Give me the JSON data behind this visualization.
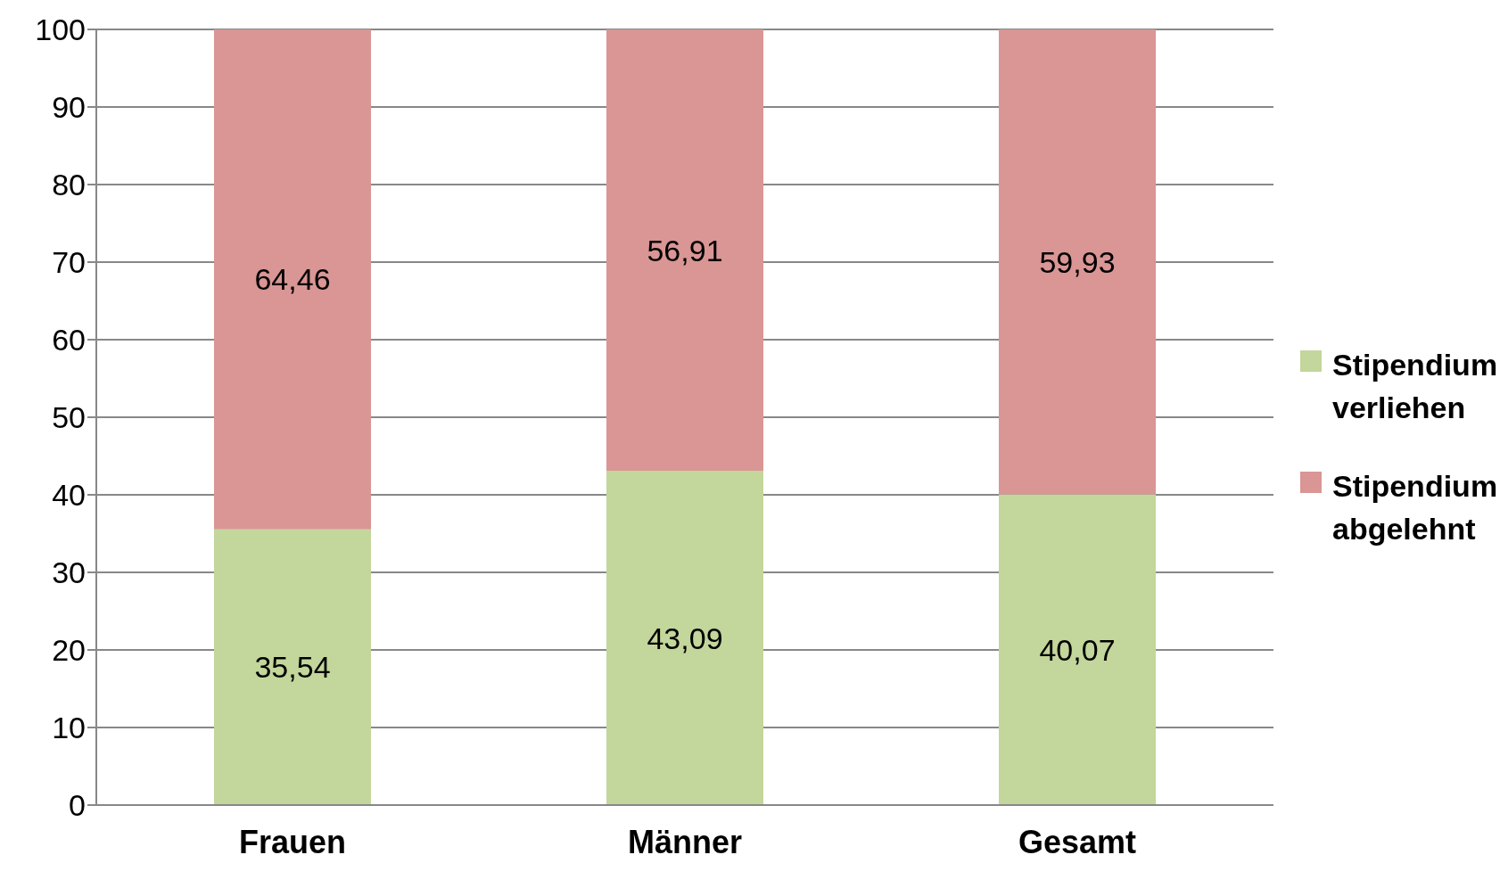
{
  "chart_data": {
    "type": "bar",
    "stacked": true,
    "categories": [
      "Frauen",
      "Männer",
      "Gesamt"
    ],
    "series": [
      {
        "name": "Stipendium verliehen",
        "color": "#c3d69b",
        "values": [
          35.54,
          43.09,
          40.07
        ],
        "value_labels": [
          "35,54",
          "43,09",
          "40,07"
        ]
      },
      {
        "name": "Stipendium abgelehnt",
        "color": "#d99694",
        "values": [
          64.46,
          56.91,
          59.93
        ],
        "value_labels": [
          "64,46",
          "56,91",
          "59,93"
        ]
      }
    ],
    "ylim": [
      0,
      100
    ],
    "yticks": [
      0,
      10,
      20,
      30,
      40,
      50,
      60,
      70,
      80,
      90,
      100
    ],
    "grid": "y",
    "legend": "right"
  }
}
